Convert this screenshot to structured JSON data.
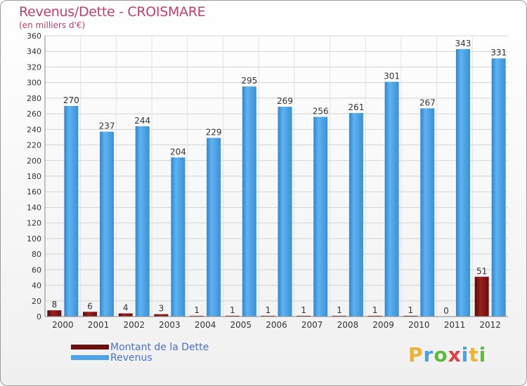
{
  "header": {
    "title": "Revenus/Dette - CROISMARE",
    "subtitle": "(en milliers d'€)"
  },
  "chart_data": {
    "type": "bar",
    "categories": [
      "2000",
      "2001",
      "2002",
      "2003",
      "2004",
      "2005",
      "2006",
      "2007",
      "2008",
      "2009",
      "2010",
      "2011",
      "2012"
    ],
    "series": [
      {
        "name": "Montant de la Dette",
        "color": "#8b1a1a",
        "values": [
          8,
          6,
          4,
          3,
          1,
          1,
          1,
          1,
          1,
          1,
          1,
          0,
          51
        ]
      },
      {
        "name": "Revenus",
        "color": "#4ea3e6",
        "values": [
          270,
          237,
          244,
          204,
          229,
          295,
          269,
          256,
          261,
          301,
          267,
          343,
          331
        ]
      }
    ],
    "ylim": [
      0,
      360
    ],
    "yticks": [
      0,
      20,
      40,
      60,
      80,
      100,
      120,
      140,
      160,
      180,
      200,
      220,
      240,
      260,
      280,
      300,
      320,
      340,
      360
    ],
    "grid": true
  },
  "legend": {
    "items": [
      {
        "label": "Montant de la Dette",
        "color": "#6b0f0f"
      },
      {
        "label": "Revenus",
        "color": "#4ea3e6"
      }
    ]
  },
  "logo": {
    "letters": [
      "P",
      "r",
      "o",
      "x",
      "i",
      "t",
      "i"
    ],
    "colors": [
      "#f0b030",
      "#4aa0e0",
      "#60b840",
      "#e04040",
      "#4aa0e0",
      "#f0b030",
      "#60b840"
    ]
  }
}
